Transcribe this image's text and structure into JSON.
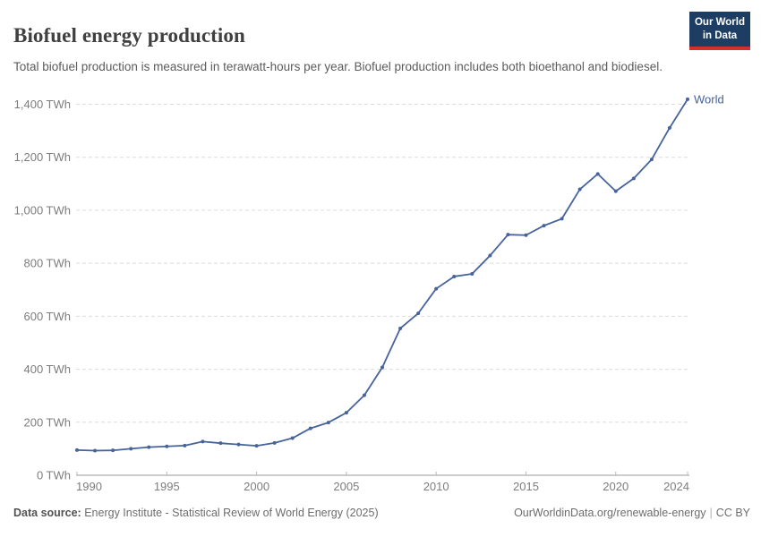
{
  "header": {
    "title": "Biofuel energy production",
    "subtitle": "Total biofuel production is measured in terawatt-hours per year. Biofuel production includes both bioethanol and biodiesel.",
    "logo_line1": "Our World",
    "logo_line2": "in Data"
  },
  "colors": {
    "line": "#46639c",
    "entity_label": "#46639c",
    "grid": "#dcdcdc",
    "axis_line": "#999999",
    "tick_mark": "#b8b8b8",
    "tick_label": "#7d7d7d",
    "title": "#404040",
    "subtitle": "#5b5b5b",
    "footer": "#6d6d6d",
    "logo_bg": "#1d3d63",
    "logo_accent": "#d4302a"
  },
  "chart_data": {
    "type": "line",
    "title": "Biofuel energy production",
    "xlabel": "",
    "ylabel": "",
    "unit": "TWh",
    "xlim": [
      1990,
      2024
    ],
    "ylim": [
      0,
      1400
    ],
    "x_ticks": [
      1990,
      1995,
      2000,
      2005,
      2010,
      2015,
      2020,
      2024
    ],
    "y_ticks": [
      0,
      200,
      400,
      600,
      800,
      1000,
      1200,
      1400
    ],
    "y_tick_suffix": " TWh",
    "grid": "horizontal-dashed",
    "legend_position": "end-of-line",
    "series": [
      {
        "name": "World",
        "color": "#46639c",
        "x": [
          1990,
          1991,
          1992,
          1993,
          1994,
          1995,
          1996,
          1997,
          1998,
          1999,
          2000,
          2001,
          2002,
          2003,
          2004,
          2005,
          2006,
          2007,
          2008,
          2009,
          2010,
          2011,
          2012,
          2013,
          2014,
          2015,
          2016,
          2017,
          2018,
          2019,
          2020,
          2021,
          2022,
          2023,
          2024
        ],
        "values": [
          95,
          93,
          94,
          100,
          106,
          109,
          112,
          127,
          121,
          116,
          111,
          122,
          140,
          177,
          199,
          236,
          302,
          407,
          554,
          611,
          704,
          750,
          760,
          829,
          908,
          906,
          942,
          968,
          1079,
          1137,
          1072,
          1120,
          1192,
          1311,
          1419
        ]
      }
    ]
  },
  "footer": {
    "datasource_label": "Data source:",
    "datasource_text": "Energy Institute - Statistical Review of World Energy (2025)",
    "link_text": "OurWorldinData.org/renewable-energy",
    "separator": "|",
    "license_text": "CC BY"
  }
}
